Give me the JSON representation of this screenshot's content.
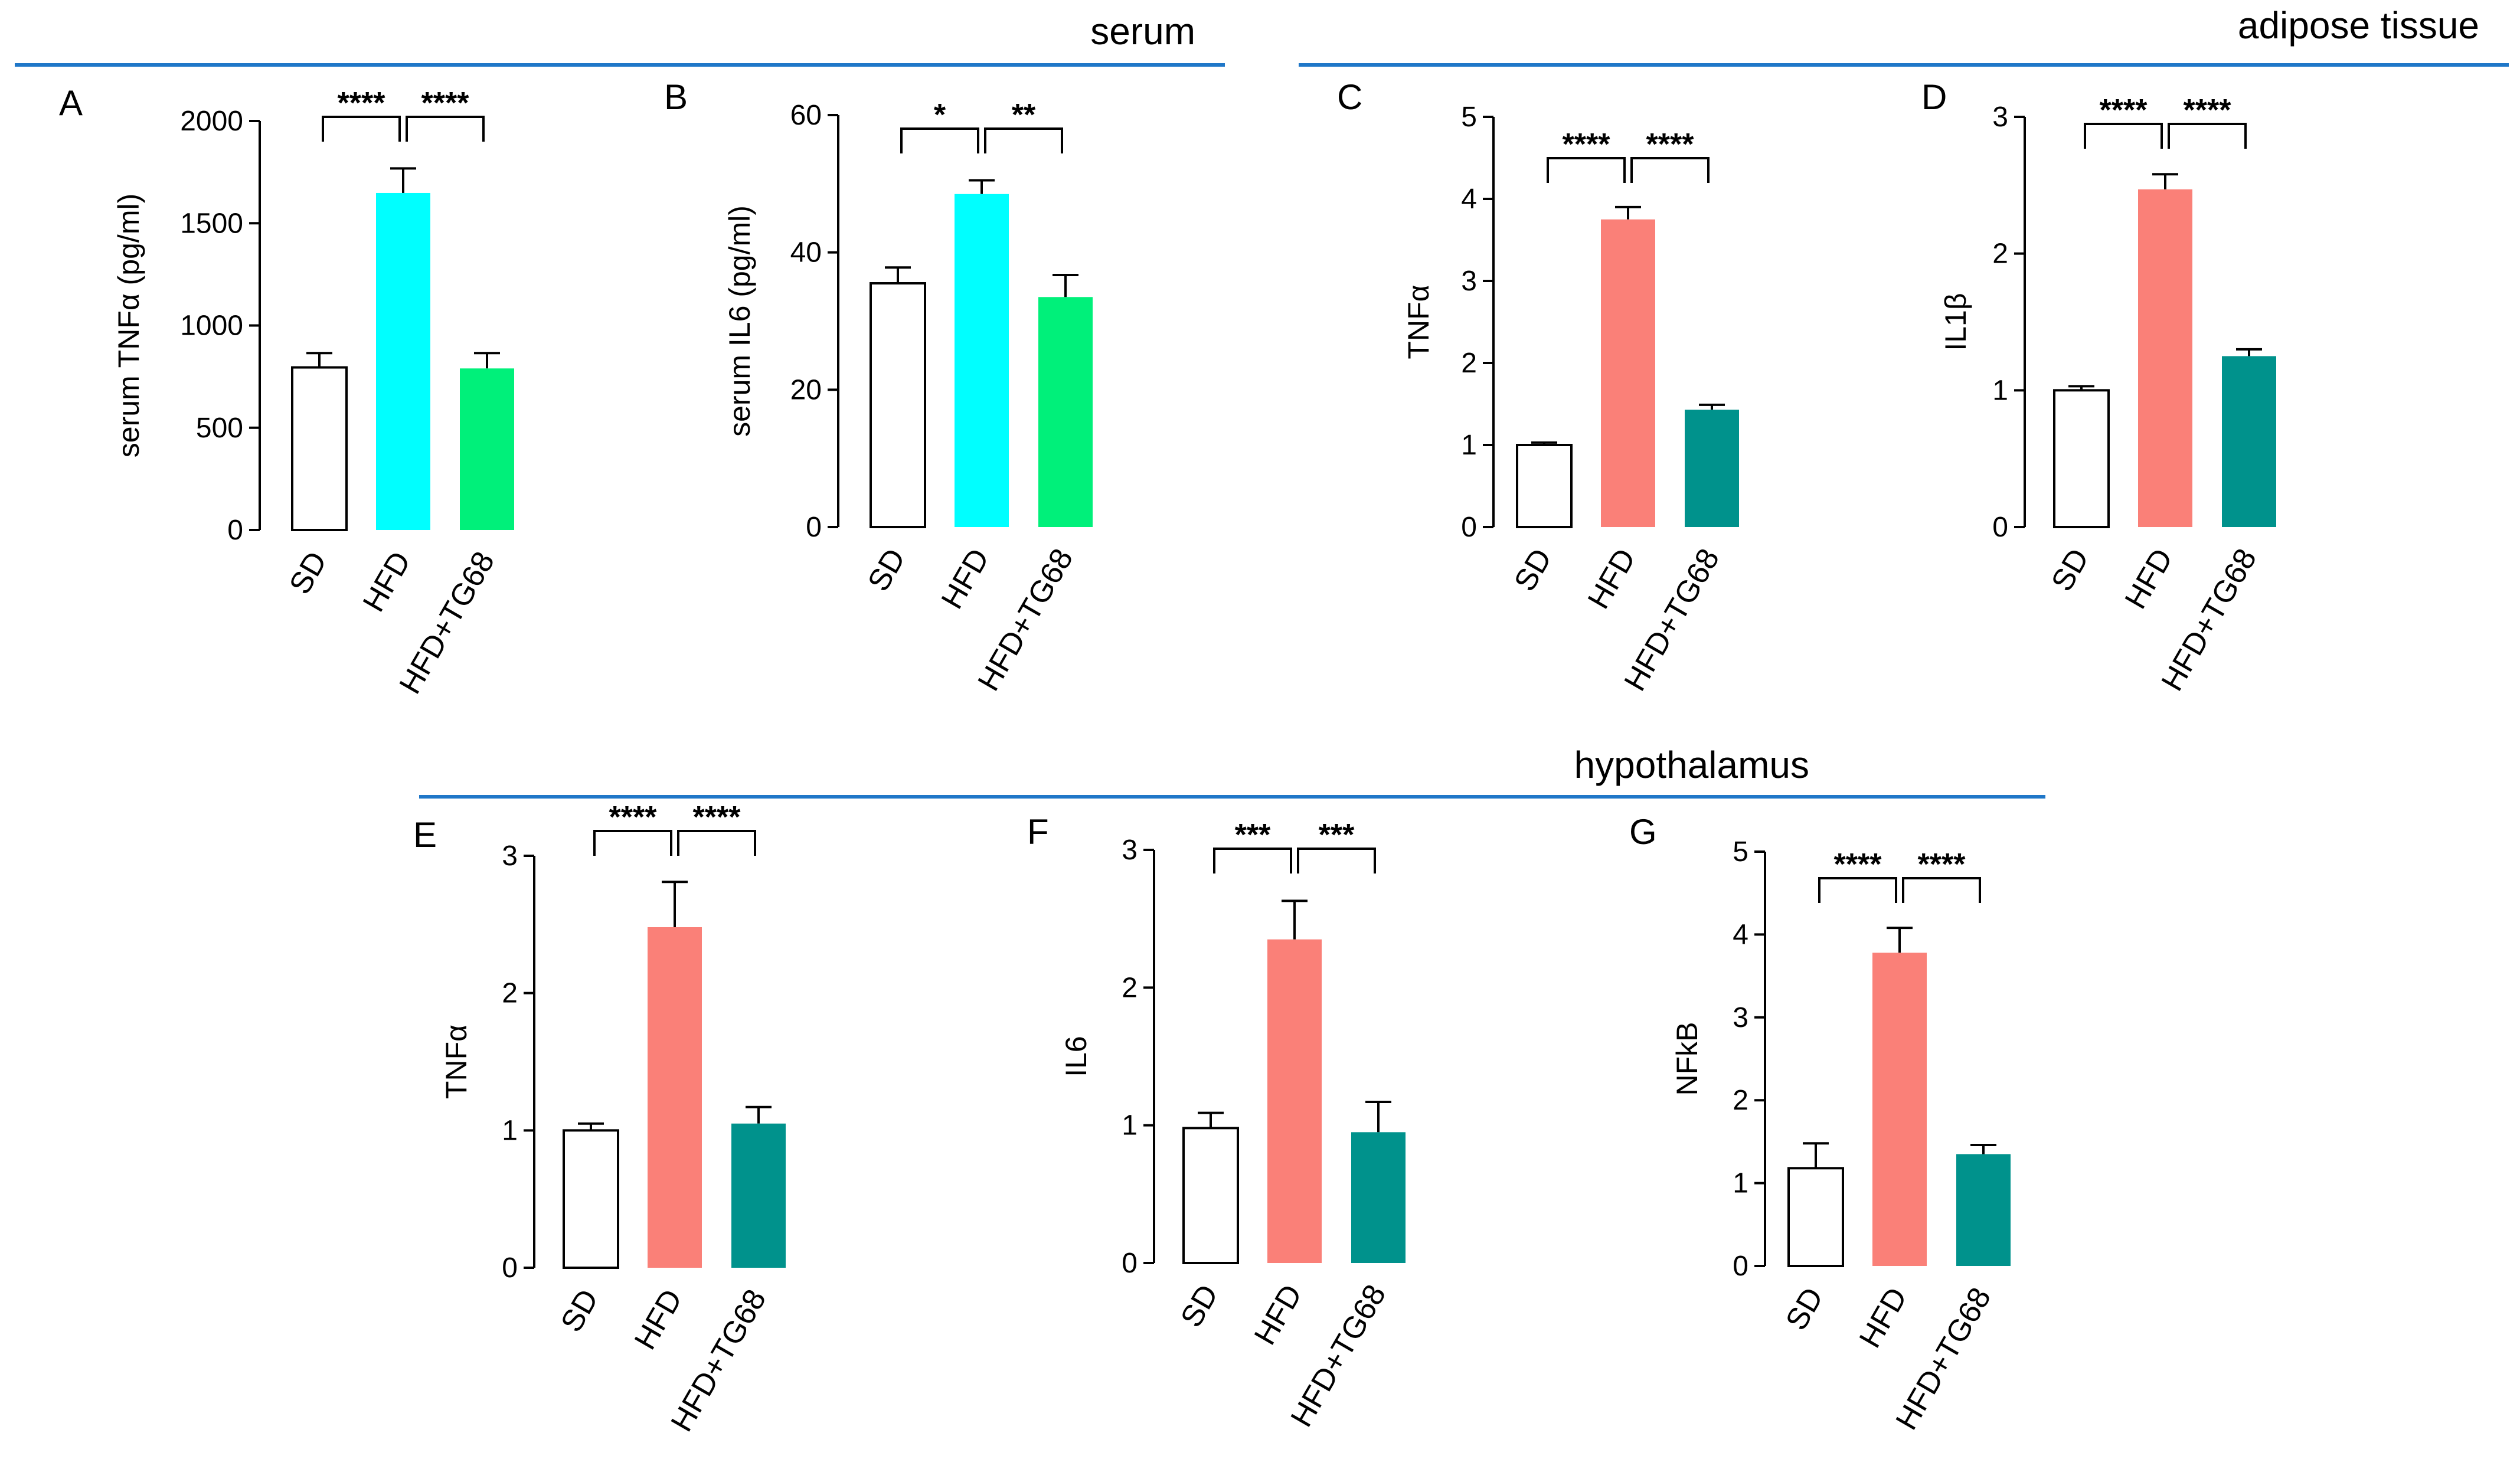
{
  "sections": [
    {
      "id": "serum",
      "title": "serum",
      "color": "#1f77c8"
    },
    {
      "id": "adipose",
      "title": "adipose tissue",
      "color": "#1f77c8"
    },
    {
      "id": "hypothalamus",
      "title": "hypothalamus",
      "color": "#1f77c8"
    }
  ],
  "chart_data": [
    {
      "type": "bar",
      "panel": "A",
      "section": "serum",
      "categories": [
        "SD",
        "HFD",
        "HFD+TG68"
      ],
      "values": [
        795,
        1648,
        790
      ],
      "errors": [
        70,
        120,
        75
      ],
      "colors": [
        "#ffffff",
        "#00ffff",
        "#00f07a"
      ],
      "ylabel": "serum TNFα (pg/ml)",
      "ylim": [
        0,
        2000
      ],
      "yticks": [
        0,
        500,
        1000,
        1500,
        2000
      ],
      "significance": [
        {
          "from": 0,
          "to": 1,
          "label": "****"
        },
        {
          "from": 1,
          "to": 2,
          "label": "****"
        }
      ]
    },
    {
      "type": "bar",
      "panel": "B",
      "section": "serum",
      "categories": [
        "SD",
        "HFD",
        "HFD+TG68"
      ],
      "values": [
        35.5,
        48.5,
        33.5
      ],
      "errors": [
        2.3,
        2.0,
        3.2
      ],
      "colors": [
        "#ffffff",
        "#00ffff",
        "#00f07a"
      ],
      "ylabel": "serum IL6 (pg/ml)",
      "ylim": [
        0,
        60
      ],
      "yticks": [
        0,
        20,
        40,
        60
      ],
      "significance": [
        {
          "from": 0,
          "to": 1,
          "label": "*"
        },
        {
          "from": 1,
          "to": 2,
          "label": "**"
        }
      ]
    },
    {
      "type": "bar",
      "panel": "C",
      "section": "adipose",
      "categories": [
        "SD",
        "HFD",
        "HFD+TG68"
      ],
      "values": [
        1.0,
        3.75,
        1.43
      ],
      "errors": [
        0.03,
        0.15,
        0.06
      ],
      "colors": [
        "#ffffff",
        "#fa8078",
        "#00928c"
      ],
      "ylabel": "TNFα",
      "ylim": [
        0,
        5
      ],
      "yticks": [
        0,
        1,
        2,
        3,
        4,
        5
      ],
      "significance": [
        {
          "from": 0,
          "to": 1,
          "label": "****"
        },
        {
          "from": 1,
          "to": 2,
          "label": "****"
        }
      ]
    },
    {
      "type": "bar",
      "panel": "D",
      "section": "adipose",
      "categories": [
        "SD",
        "HFD",
        "HFD+TG68"
      ],
      "values": [
        1.0,
        2.47,
        1.25
      ],
      "errors": [
        0.03,
        0.11,
        0.05
      ],
      "colors": [
        "#ffffff",
        "#fa8078",
        "#00928c"
      ],
      "ylabel": "IL1β",
      "ylim": [
        0,
        3
      ],
      "yticks": [
        0,
        1,
        2,
        3
      ],
      "significance": [
        {
          "from": 0,
          "to": 1,
          "label": "****"
        },
        {
          "from": 1,
          "to": 2,
          "label": "****"
        }
      ]
    },
    {
      "type": "bar",
      "panel": "E",
      "section": "hypothalamus",
      "categories": [
        "SD",
        "HFD",
        "HFD+TG68"
      ],
      "values": [
        1.0,
        2.48,
        1.05
      ],
      "errors": [
        0.05,
        0.33,
        0.12
      ],
      "colors": [
        "#ffffff",
        "#fa8078",
        "#00928c"
      ],
      "ylabel": "TNFα",
      "ylim": [
        0,
        3
      ],
      "yticks": [
        0,
        1,
        2,
        3
      ],
      "significance": [
        {
          "from": 0,
          "to": 1,
          "label": "****"
        },
        {
          "from": 1,
          "to": 2,
          "label": "****"
        }
      ]
    },
    {
      "type": "bar",
      "panel": "F",
      "section": "hypothalamus",
      "categories": [
        "SD",
        "HFD",
        "HFD+TG68"
      ],
      "values": [
        0.98,
        2.35,
        0.95
      ],
      "errors": [
        0.11,
        0.28,
        0.22
      ],
      "colors": [
        "#ffffff",
        "#fa8078",
        "#00928c"
      ],
      "ylabel": "IL6",
      "ylim": [
        0,
        3
      ],
      "yticks": [
        0,
        1,
        2,
        3
      ],
      "significance": [
        {
          "from": 0,
          "to": 1,
          "label": "***"
        },
        {
          "from": 1,
          "to": 2,
          "label": "***"
        }
      ]
    },
    {
      "type": "bar",
      "panel": "G",
      "section": "hypothalamus",
      "categories": [
        "SD",
        "HFD",
        "HFD+TG68"
      ],
      "values": [
        1.18,
        3.78,
        1.35
      ],
      "errors": [
        0.3,
        0.3,
        0.11
      ],
      "colors": [
        "#ffffff",
        "#fa8078",
        "#00928c"
      ],
      "ylabel": "NFkB",
      "ylim": [
        0,
        5
      ],
      "yticks": [
        0,
        1,
        2,
        3,
        4,
        5
      ],
      "significance": [
        {
          "from": 0,
          "to": 1,
          "label": "****"
        },
        {
          "from": 1,
          "to": 2,
          "label": "****"
        }
      ]
    }
  ]
}
